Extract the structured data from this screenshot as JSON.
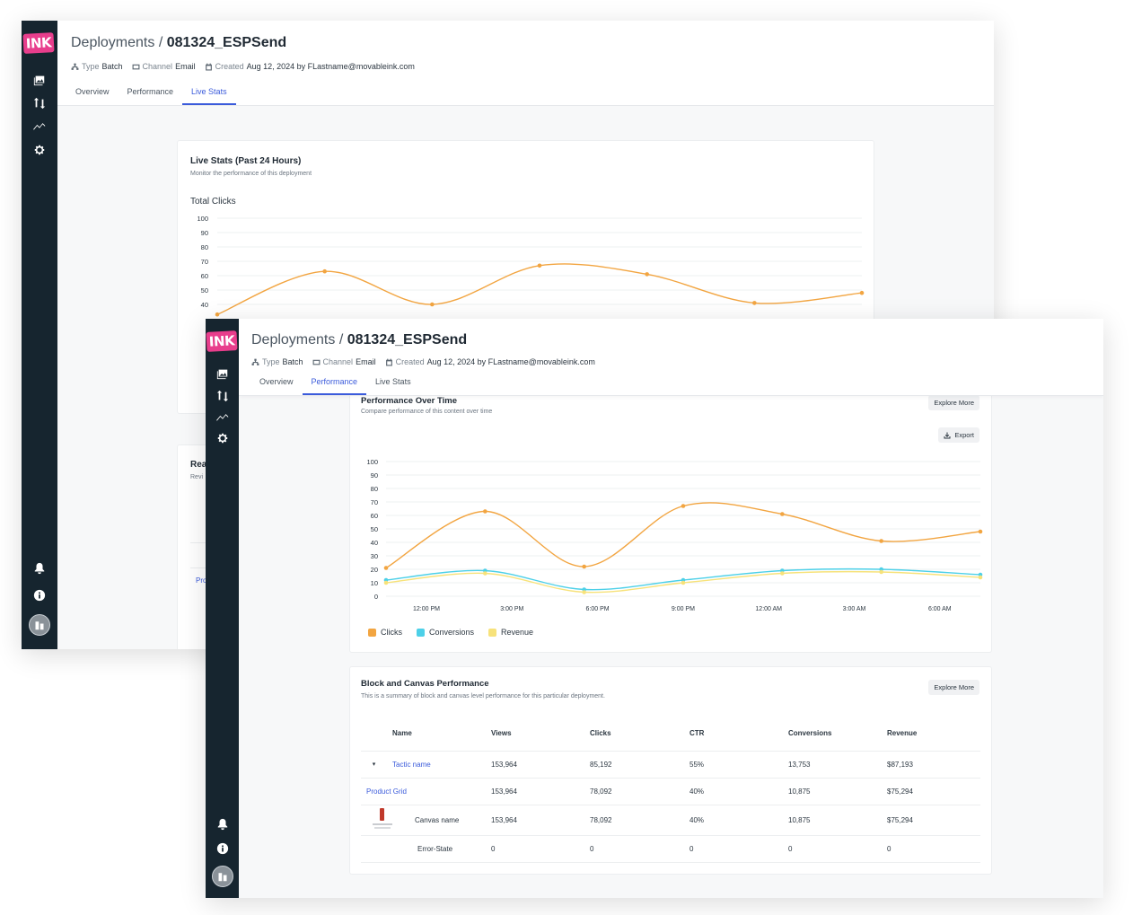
{
  "brand": {
    "logo_text": "INK",
    "accent": "#e83e8c",
    "sidebar_bg": "#16252f",
    "link": "#3b5bdb"
  },
  "sidebar": {
    "icons": [
      "images-icon",
      "sort-arrows-icon",
      "trend-icon",
      "gear-icon",
      "bell-icon",
      "info-icon",
      "avatar-icon"
    ]
  },
  "deployment": {
    "breadcrumb_root": "Deployments",
    "separator": "/",
    "name": "081324_ESPSend",
    "type_label": "Type",
    "type_value": "Batch",
    "channel_label": "Channel",
    "channel_value": "Email",
    "created_label": "Created",
    "created_value": "Aug 12, 2024 by FLastname@movableink.com"
  },
  "tabs": [
    "Overview",
    "Performance",
    "Live Stats"
  ],
  "back_window": {
    "active_tab": 2,
    "live_card": {
      "title": "Live Stats (Past 24 Hours)",
      "subtitle": "Monitor the performance of this deployment",
      "chart_title": "Total Clicks"
    },
    "second_card_title": "Rea",
    "second_card_sub": "Revi",
    "table_link": "Pro"
  },
  "front_window": {
    "active_tab": 1,
    "perf_card": {
      "title": "Performance Over Time",
      "subtitle": "Compare performance of this content over time",
      "explore_label": "Explore More",
      "export_label": "Export"
    },
    "block_card": {
      "title": "Block and Canvas Performance",
      "subtitle": "This is a summary of block and canvas level performance for this particular deployment.",
      "explore_label": "Explore More",
      "columns": [
        "Name",
        "Views",
        "Clicks",
        "CTR",
        "Conversions",
        "Revenue"
      ],
      "rows": [
        {
          "caret": "▾",
          "name": "Tactic name",
          "views": "153,964",
          "clicks": "85,192",
          "ctr": "55%",
          "conversions": "13,753",
          "revenue": "$87,193"
        },
        {
          "caret": "",
          "name": "Product Grid",
          "views": "153,964",
          "clicks": "78,092",
          "ctr": "40%",
          "conversions": "10,875",
          "revenue": "$75,294"
        },
        {
          "caret": "",
          "name": "Canvas name",
          "views": "153,964",
          "clicks": "78,092",
          "ctr": "40%",
          "conversions": "10,875",
          "revenue": "$75,294"
        },
        {
          "caret": "",
          "name": "Error-State",
          "views": "0",
          "clicks": "0",
          "ctr": "0",
          "conversions": "0",
          "revenue": "0"
        }
      ]
    }
  },
  "chart_data": [
    {
      "type": "line",
      "title": "Total Clicks",
      "ylim": [
        0,
        100
      ],
      "yticks": [
        100,
        90,
        80,
        70,
        60,
        50,
        40
      ],
      "grid": true,
      "series": [
        {
          "color": "#f2a541",
          "points": [
            [
              0,
              33
            ],
            [
              2,
              63
            ],
            [
              4,
              40
            ],
            [
              6,
              67
            ],
            [
              8,
              61
            ],
            [
              10,
              41
            ],
            [
              12,
              48
            ]
          ]
        }
      ]
    },
    {
      "type": "line",
      "ylim": [
        0,
        100
      ],
      "yticks": [
        100,
        90,
        80,
        70,
        60,
        50,
        40,
        30,
        20,
        10,
        0
      ],
      "x": [
        "12:00 PM",
        "3:00 PM",
        "6:00 PM",
        "9:00 PM",
        "12:00 AM",
        "3:00 AM",
        "6:00 AM"
      ],
      "grid": true,
      "legend": "bottom-left",
      "series": [
        {
          "name": "Clicks",
          "color": "#f2a541",
          "points": [
            [
              0,
              21
            ],
            [
              1,
              63
            ],
            [
              2,
              22
            ],
            [
              3,
              67
            ],
            [
              4,
              61
            ],
            [
              5,
              41
            ],
            [
              6,
              48
            ]
          ]
        },
        {
          "name": "Conversions",
          "color": "#4dd0e8",
          "points": [
            [
              0,
              12
            ],
            [
              1,
              19
            ],
            [
              2,
              5
            ],
            [
              3,
              12
            ],
            [
              4,
              19
            ],
            [
              5,
              20
            ],
            [
              6,
              16
            ]
          ]
        },
        {
          "name": "Revenue",
          "color": "#f7e27a",
          "points": [
            [
              0,
              10
            ],
            [
              1,
              17
            ],
            [
              2,
              3
            ],
            [
              3,
              10
            ],
            [
              4,
              17
            ],
            [
              5,
              18
            ],
            [
              6,
              14
            ]
          ]
        }
      ]
    }
  ]
}
